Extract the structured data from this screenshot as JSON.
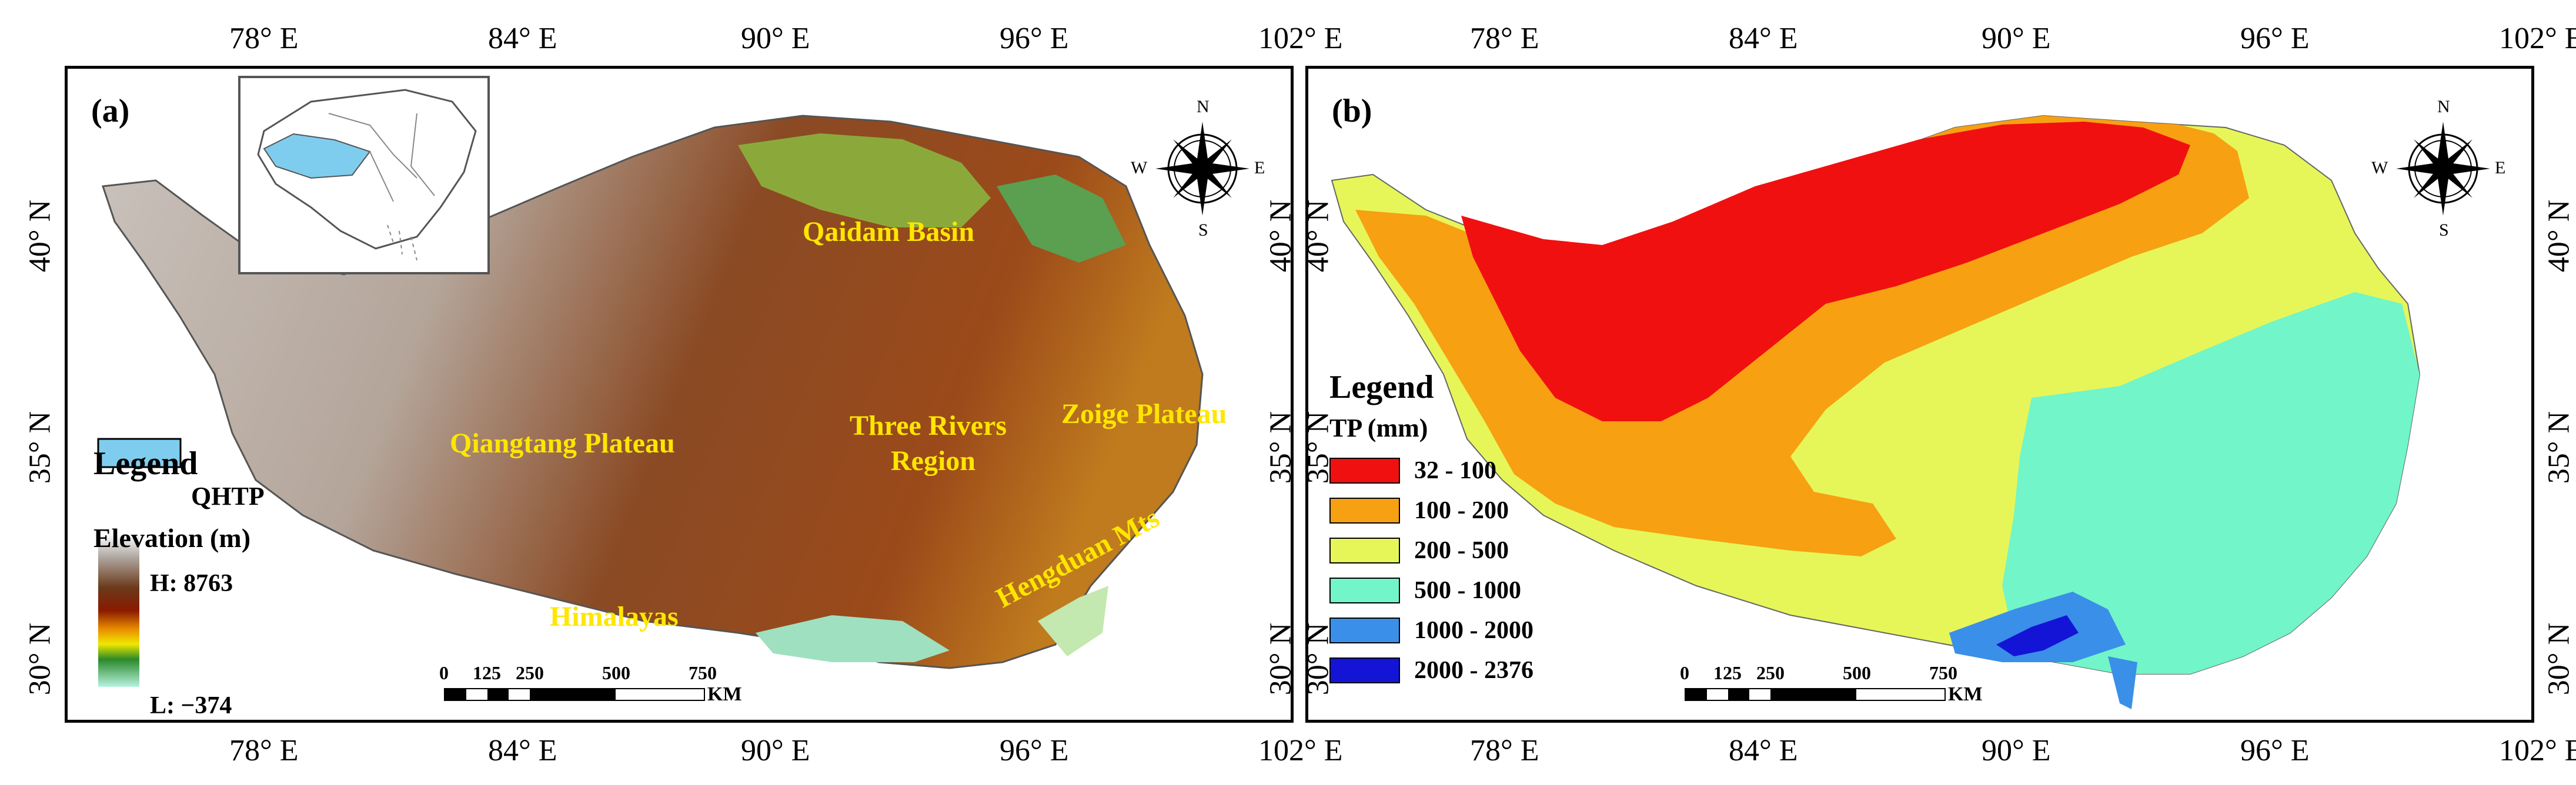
{
  "lon_ticks": [
    "78° E",
    "84° E",
    "90° E",
    "96° E",
    "102° E"
  ],
  "lat_ticks": [
    "40° N",
    "35° N",
    "30° N"
  ],
  "panel_a": {
    "label": "(a)",
    "regions": [
      "Qaidam Basin",
      "Qiangtang Plateau",
      "Three Rivers",
      "Region",
      "Zoige Plateau",
      "Himalayas",
      "Hengduan Mts"
    ],
    "legend": {
      "title": "Legend",
      "qhtp": "QHTP",
      "elev_title": "Elevation (m)",
      "high": "H: 8763",
      "low": "L: −374"
    },
    "colors": {
      "qhtp": "#7fcdee"
    }
  },
  "panel_b": {
    "label": "(b)",
    "legend": {
      "title": "Legend",
      "subtitle": "TP (mm)",
      "classes": [
        {
          "label": "32 - 100",
          "color": "#f01010"
        },
        {
          "label": "100 - 200",
          "color": "#f7a012"
        },
        {
          "label": "200 - 500",
          "color": "#e6f659"
        },
        {
          "label": "500 - 1000",
          "color": "#72f5c8"
        },
        {
          "label": "1000 - 2000",
          "color": "#3a8fe8"
        },
        {
          "label": "2000 - 2376",
          "color": "#1414d6"
        }
      ]
    }
  },
  "scale_bar": {
    "ticks": [
      "0",
      "125",
      "250",
      "500",
      "750"
    ],
    "unit": "KM"
  },
  "compass": {
    "n": "N",
    "s": "S",
    "e": "E",
    "w": "W"
  }
}
